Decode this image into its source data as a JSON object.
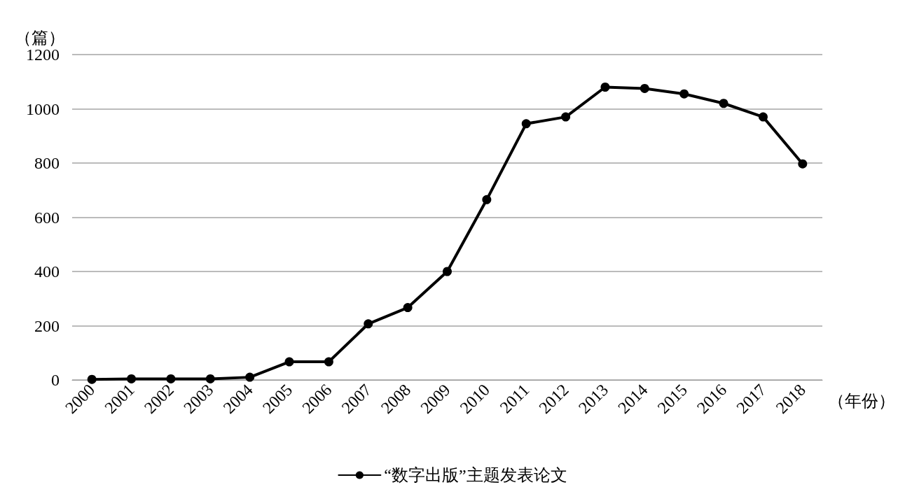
{
  "chart_data": {
    "type": "line",
    "ylabel": "（篇）",
    "xlabel": "（年份）",
    "categories": [
      "2000",
      "2001",
      "2002",
      "2003",
      "2004",
      "2005",
      "2006",
      "2007",
      "2008",
      "2009",
      "2010",
      "2011",
      "2012",
      "2013",
      "2014",
      "2015",
      "2016",
      "2017",
      "2018"
    ],
    "series": [
      {
        "name": "“数字出版”主题发表论文",
        "color": "#000000",
        "values": [
          2,
          4,
          4,
          4,
          10,
          67,
          67,
          207,
          267,
          400,
          665,
          945,
          970,
          1080,
          1075,
          1055,
          1020,
          970,
          797
        ]
      }
    ],
    "ylim": [
      0,
      1200
    ],
    "yticks": [
      0,
      200,
      400,
      600,
      800,
      1000,
      1200
    ],
    "grid": "y",
    "legend": "bottom",
    "marker": "circle",
    "line_style": "solid"
  }
}
